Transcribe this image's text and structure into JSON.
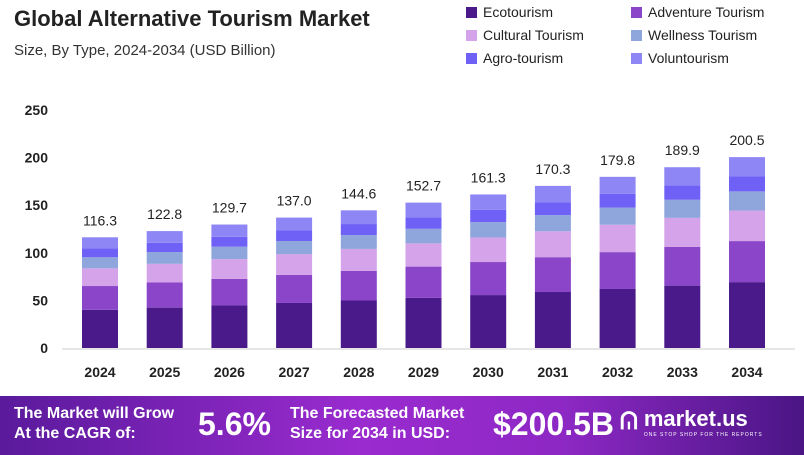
{
  "chart_data": {
    "type": "bar",
    "stacked": true,
    "title": "Global Alternative Tourism Market",
    "subtitle": "Size, By Type, 2024-2034 (USD Billion)",
    "categories": [
      "2024",
      "2025",
      "2026",
      "2027",
      "2028",
      "2029",
      "2030",
      "2031",
      "2032",
      "2033",
      "2034"
    ],
    "totals": [
      "116.3",
      "122.8",
      "129.7",
      "137.0",
      "144.6",
      "152.7",
      "161.3",
      "170.3",
      "179.8",
      "189.9",
      "200.5"
    ],
    "ylim": [
      0,
      250
    ],
    "yticks": [
      "0",
      "50",
      "100",
      "150",
      "200",
      "250"
    ],
    "grid": false,
    "legend_position": "top-right",
    "series": [
      {
        "name": "Ecotourism",
        "color": "#4a1a8a",
        "values": [
          40.1,
          42.4,
          44.7,
          47.3,
          49.9,
          52.7,
          55.6,
          58.8,
          62.0,
          65.5,
          69.2
        ]
      },
      {
        "name": "Adventure Tourism",
        "color": "#8a45c8",
        "values": [
          25.0,
          26.4,
          27.9,
          29.5,
          31.1,
          32.8,
          34.7,
          36.6,
          38.7,
          40.8,
          43.1
        ]
      },
      {
        "name": "Cultural Tourism",
        "color": "#d4a3ea",
        "values": [
          18.6,
          19.6,
          20.8,
          21.9,
          23.1,
          24.4,
          25.8,
          27.2,
          28.8,
          30.4,
          32.1
        ]
      },
      {
        "name": "Wellness Tourism",
        "color": "#8fa6dc",
        "values": [
          11.6,
          12.3,
          13.0,
          13.7,
          14.5,
          15.3,
          16.1,
          17.0,
          18.0,
          19.0,
          20.1
        ]
      },
      {
        "name": "Agro-tourism",
        "color": "#6f61f5",
        "values": [
          9.3,
          9.8,
          10.4,
          11.0,
          11.6,
          12.2,
          12.9,
          13.6,
          14.4,
          15.2,
          16.0
        ]
      },
      {
        "name": "Voluntourism",
        "color": "#8e86f5",
        "values": [
          11.7,
          12.3,
          12.9,
          13.6,
          14.4,
          15.3,
          16.2,
          17.1,
          17.9,
          19.0,
          20.0
        ]
      }
    ]
  },
  "banner": {
    "cagr_label_1": "The Market will Grow",
    "cagr_label_2": "At the CAGR of:",
    "cagr_value": "5.6%",
    "forecast_label_1": "The Forecasted Market",
    "forecast_label_2": "Size for 2034 in USD:",
    "forecast_value": "$200.5B",
    "logo": "market.us",
    "logo_tagline": "ONE STOP SHOP FOR THE REPORTS"
  }
}
